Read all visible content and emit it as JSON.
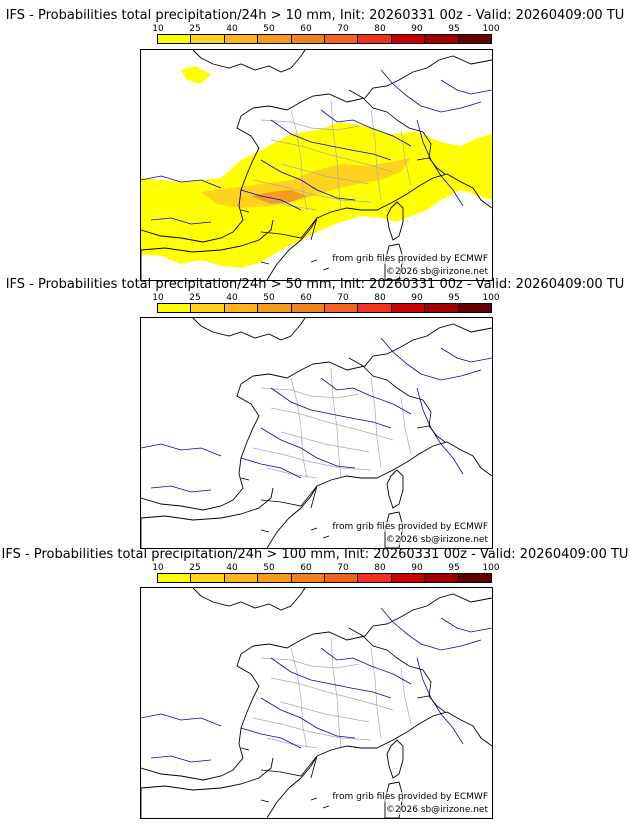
{
  "colorbar": {
    "ticks": [
      "10",
      "25",
      "40",
      "50",
      "60",
      "70",
      "80",
      "90",
      "95",
      "100"
    ],
    "colors": [
      "#ffff00",
      "#ffd21e",
      "#ffb41e",
      "#f59b1e",
      "#f0821e",
      "#f5641e",
      "#f0321e",
      "#c80000",
      "#a00000",
      "#640000"
    ]
  },
  "map_colors": {
    "coast": "#000000",
    "rivers": "#0000cc",
    "borders_internal": "#aaaaaa",
    "prob_low": "#ffff00",
    "prob_mid": "#ffd21e",
    "prob_high": "#f59b1e"
  },
  "panels": [
    {
      "title": "IFS - Probabilities total precipitation/24h > 10 mm, Init: 20260331 00z - Valid: 20260409:00 TU",
      "credit_grib": "from grib files provided by ECMWF",
      "credit_site": "©2026 sb@irizone.net",
      "has_precip": true
    },
    {
      "title": "IFS - Probabilities total precipitation/24h > 50 mm, Init: 20260331 00z - Valid: 20260409:00 TU",
      "credit_grib": "from grib files provided by ECMWF",
      "credit_site": "©2026 sb@irizone.net",
      "has_precip": false
    },
    {
      "title": "IFS - Probabilities total precipitation/24h > 100 mm, Init: 20260331 00z - Valid: 20260409:00 TU",
      "credit_grib": "from grib files provided by ECMWF",
      "credit_site": "©2026 sb@irizone.net",
      "has_precip": false
    }
  ]
}
